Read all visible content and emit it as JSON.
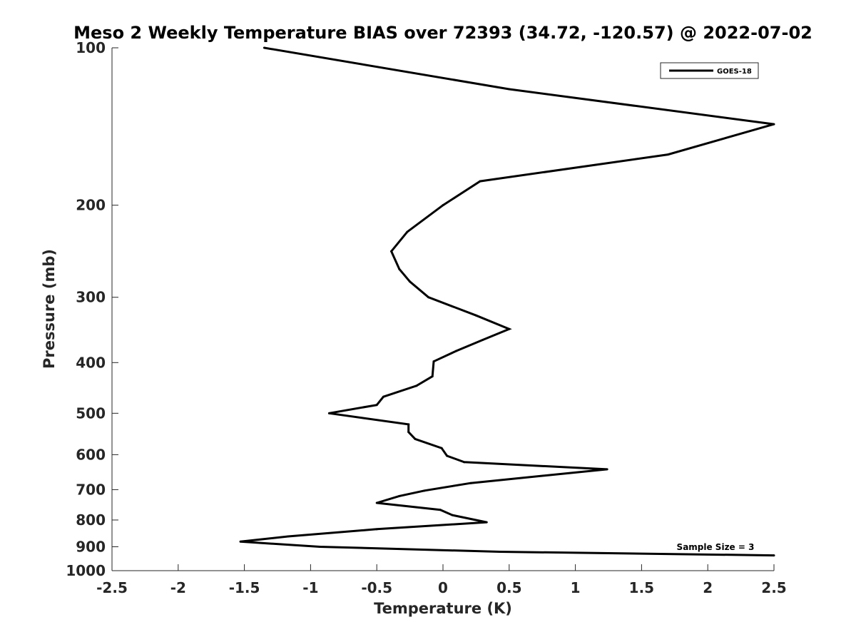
{
  "chart_data": {
    "type": "line",
    "title": "Meso 2 Weekly Temperature BIAS over 72393 (34.72, -120.57) @ 2022-07-02",
    "xlabel": "Temperature (K)",
    "ylabel": "Pressure (mb)",
    "xlim": [
      -2.5,
      2.5
    ],
    "ylim": [
      100,
      1000
    ],
    "y_scale": "log",
    "y_reversed": true,
    "grid": false,
    "xticks": [
      -2.5,
      -2,
      -1.5,
      -1,
      -0.5,
      0,
      0.5,
      1,
      1.5,
      2,
      2.5
    ],
    "xtick_labels": [
      "-2.5",
      "-2",
      "-1.5",
      "-1",
      "-0.5",
      "0",
      "0.5",
      "1",
      "1.5",
      "2",
      "2.5"
    ],
    "yticks": [
      100,
      200,
      300,
      400,
      500,
      600,
      700,
      800,
      900,
      1000
    ],
    "ytick_labels": [
      "100",
      "200",
      "300",
      "400",
      "500",
      "600",
      "700",
      "800",
      "900",
      "1000"
    ],
    "legend_position": "top-right",
    "annotation": "Sample Size = 3",
    "series": [
      {
        "name": "GOES-18",
        "color": "#000000",
        "points": [
          {
            "x": -1.35,
            "p": 100
          },
          {
            "x": 0.5,
            "p": 120
          },
          {
            "x": 2.5,
            "p": 140
          },
          {
            "x": 1.7,
            "p": 160
          },
          {
            "x": 0.28,
            "p": 180
          },
          {
            "x": 0.0,
            "p": 200
          },
          {
            "x": -0.27,
            "p": 225
          },
          {
            "x": -0.39,
            "p": 245
          },
          {
            "x": -0.33,
            "p": 265
          },
          {
            "x": -0.25,
            "p": 280
          },
          {
            "x": -0.11,
            "p": 300
          },
          {
            "x": 0.25,
            "p": 325
          },
          {
            "x": 0.5,
            "p": 345
          },
          {
            "x": 0.3,
            "p": 362
          },
          {
            "x": 0.1,
            "p": 380
          },
          {
            "x": -0.07,
            "p": 398
          },
          {
            "x": -0.08,
            "p": 425
          },
          {
            "x": -0.2,
            "p": 443
          },
          {
            "x": -0.45,
            "p": 465
          },
          {
            "x": -0.5,
            "p": 482
          },
          {
            "x": -0.86,
            "p": 500
          },
          {
            "x": -0.26,
            "p": 525
          },
          {
            "x": -0.26,
            "p": 543
          },
          {
            "x": -0.21,
            "p": 560
          },
          {
            "x": -0.01,
            "p": 583
          },
          {
            "x": 0.03,
            "p": 603
          },
          {
            "x": 0.16,
            "p": 620
          },
          {
            "x": 1.24,
            "p": 640
          },
          {
            "x": 0.21,
            "p": 680
          },
          {
            "x": -0.14,
            "p": 703
          },
          {
            "x": -0.33,
            "p": 720
          },
          {
            "x": -0.5,
            "p": 742
          },
          {
            "x": -0.02,
            "p": 765
          },
          {
            "x": 0.07,
            "p": 783
          },
          {
            "x": 0.33,
            "p": 808
          },
          {
            "x": -0.5,
            "p": 833
          },
          {
            "x": -1.17,
            "p": 860
          },
          {
            "x": -1.53,
            "p": 880
          },
          {
            "x": -0.93,
            "p": 900
          },
          {
            "x": 0.43,
            "p": 920
          },
          {
            "x": 2.5,
            "p": 935
          }
        ]
      }
    ]
  }
}
